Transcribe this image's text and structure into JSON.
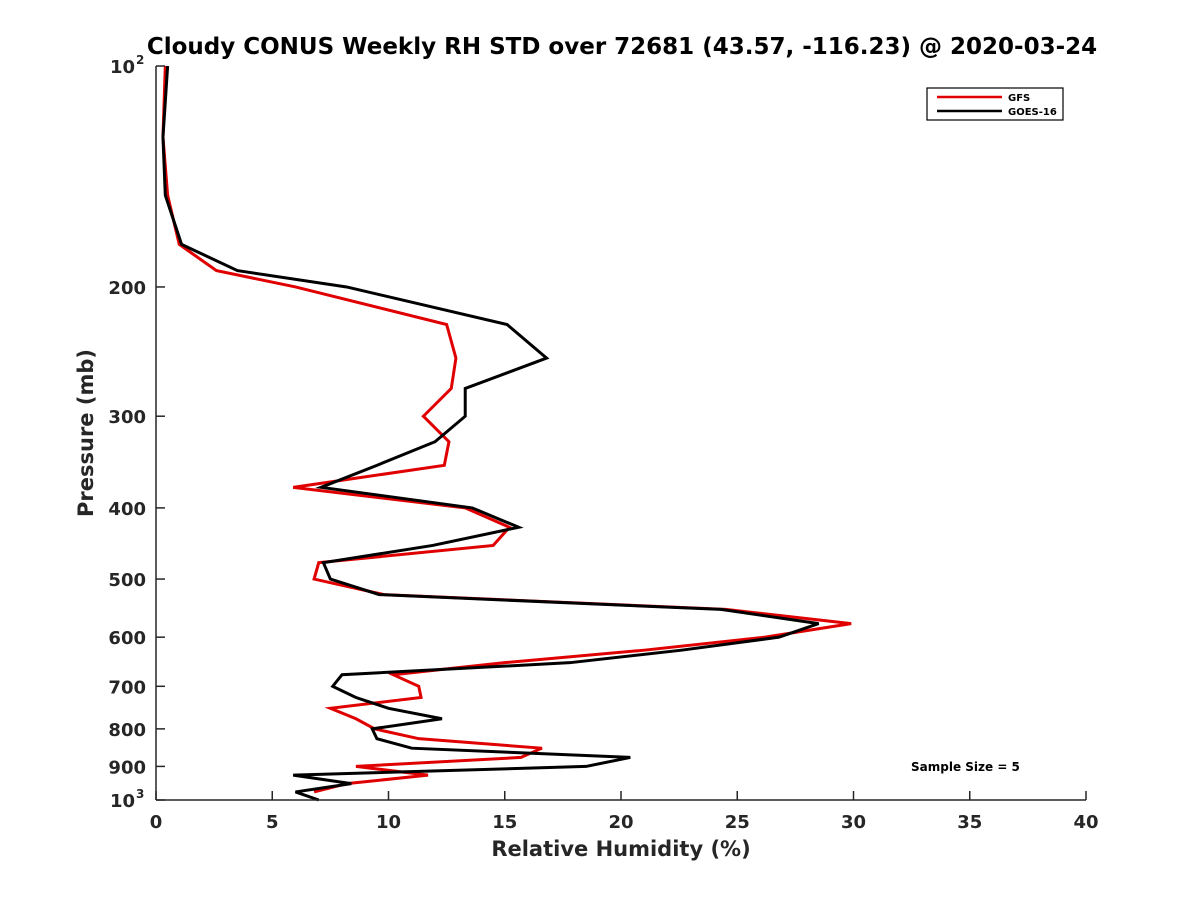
{
  "chart_data": {
    "type": "line",
    "title": "Cloudy CONUS Weekly RH STD over 72681 (43.57, -116.23) @ 2020-03-24",
    "xlabel": "Relative Humidity (%)",
    "ylabel": "Pressure (mb)",
    "xlim": [
      0,
      40
    ],
    "ylim": [
      100,
      1000
    ],
    "y_scale": "log",
    "y_reversed": true,
    "grid": false,
    "legend_position": "top-right",
    "x_ticks": [
      0,
      5,
      10,
      15,
      20,
      25,
      30,
      35,
      40
    ],
    "y_ticks": [
      {
        "value": 100,
        "label": "10",
        "exponent": "2"
      },
      {
        "value": 200,
        "label": "200"
      },
      {
        "value": 300,
        "label": "300"
      },
      {
        "value": 400,
        "label": "400"
      },
      {
        "value": 500,
        "label": "500"
      },
      {
        "value": 600,
        "label": "600"
      },
      {
        "value": 700,
        "label": "700"
      },
      {
        "value": 800,
        "label": "800"
      },
      {
        "value": 900,
        "label": "900"
      },
      {
        "value": 1000,
        "label": "10",
        "exponent": "3"
      }
    ],
    "annotation": "Sample Size = 5",
    "series": [
      {
        "name": "GFS",
        "color": "#e00000",
        "points": [
          [
            0.4,
            100
          ],
          [
            0.3,
            125
          ],
          [
            0.5,
            150
          ],
          [
            1.0,
            175
          ],
          [
            2.6,
            190
          ],
          [
            6.0,
            200
          ],
          [
            12.5,
            225
          ],
          [
            12.9,
            250
          ],
          [
            12.7,
            275
          ],
          [
            11.5,
            300
          ],
          [
            12.6,
            325
          ],
          [
            12.4,
            350
          ],
          [
            5.9,
            375
          ],
          [
            13.3,
            400
          ],
          [
            15.2,
            425
          ],
          [
            14.5,
            450
          ],
          [
            7.0,
            475
          ],
          [
            6.8,
            500
          ],
          [
            9.8,
            525
          ],
          [
            24.5,
            550
          ],
          [
            29.9,
            575
          ],
          [
            26.2,
            600
          ],
          [
            21.0,
            625
          ],
          [
            15.0,
            650
          ],
          [
            10.2,
            675
          ],
          [
            11.3,
            700
          ],
          [
            11.4,
            725
          ],
          [
            7.5,
            750
          ],
          [
            8.6,
            775
          ],
          [
            9.4,
            800
          ],
          [
            11.3,
            825
          ],
          [
            16.6,
            850
          ],
          [
            15.7,
            875
          ],
          [
            8.6,
            900
          ],
          [
            11.7,
            925
          ],
          [
            8.2,
            950
          ],
          [
            6.8,
            975
          ]
        ]
      },
      {
        "name": "GOES-16",
        "color": "#000000",
        "points": [
          [
            0.5,
            100
          ],
          [
            0.3,
            125
          ],
          [
            0.4,
            150
          ],
          [
            1.1,
            175
          ],
          [
            3.5,
            190
          ],
          [
            8.2,
            200
          ],
          [
            15.1,
            225
          ],
          [
            16.8,
            250
          ],
          [
            13.3,
            275
          ],
          [
            13.3,
            300
          ],
          [
            12.0,
            325
          ],
          [
            9.5,
            350
          ],
          [
            7.1,
            375
          ],
          [
            13.6,
            400
          ],
          [
            15.6,
            425
          ],
          [
            11.9,
            450
          ],
          [
            7.2,
            475
          ],
          [
            7.5,
            500
          ],
          [
            9.6,
            525
          ],
          [
            24.3,
            550
          ],
          [
            28.5,
            575
          ],
          [
            26.8,
            600
          ],
          [
            22.6,
            625
          ],
          [
            17.8,
            650
          ],
          [
            8.0,
            675
          ],
          [
            7.6,
            700
          ],
          [
            8.6,
            725
          ],
          [
            10.0,
            750
          ],
          [
            12.3,
            775
          ],
          [
            9.3,
            800
          ],
          [
            9.5,
            825
          ],
          [
            11.0,
            850
          ],
          [
            20.4,
            875
          ],
          [
            18.5,
            900
          ],
          [
            5.9,
            925
          ],
          [
            8.4,
            950
          ],
          [
            6.0,
            975
          ],
          [
            7.0,
            1000
          ]
        ]
      }
    ]
  }
}
